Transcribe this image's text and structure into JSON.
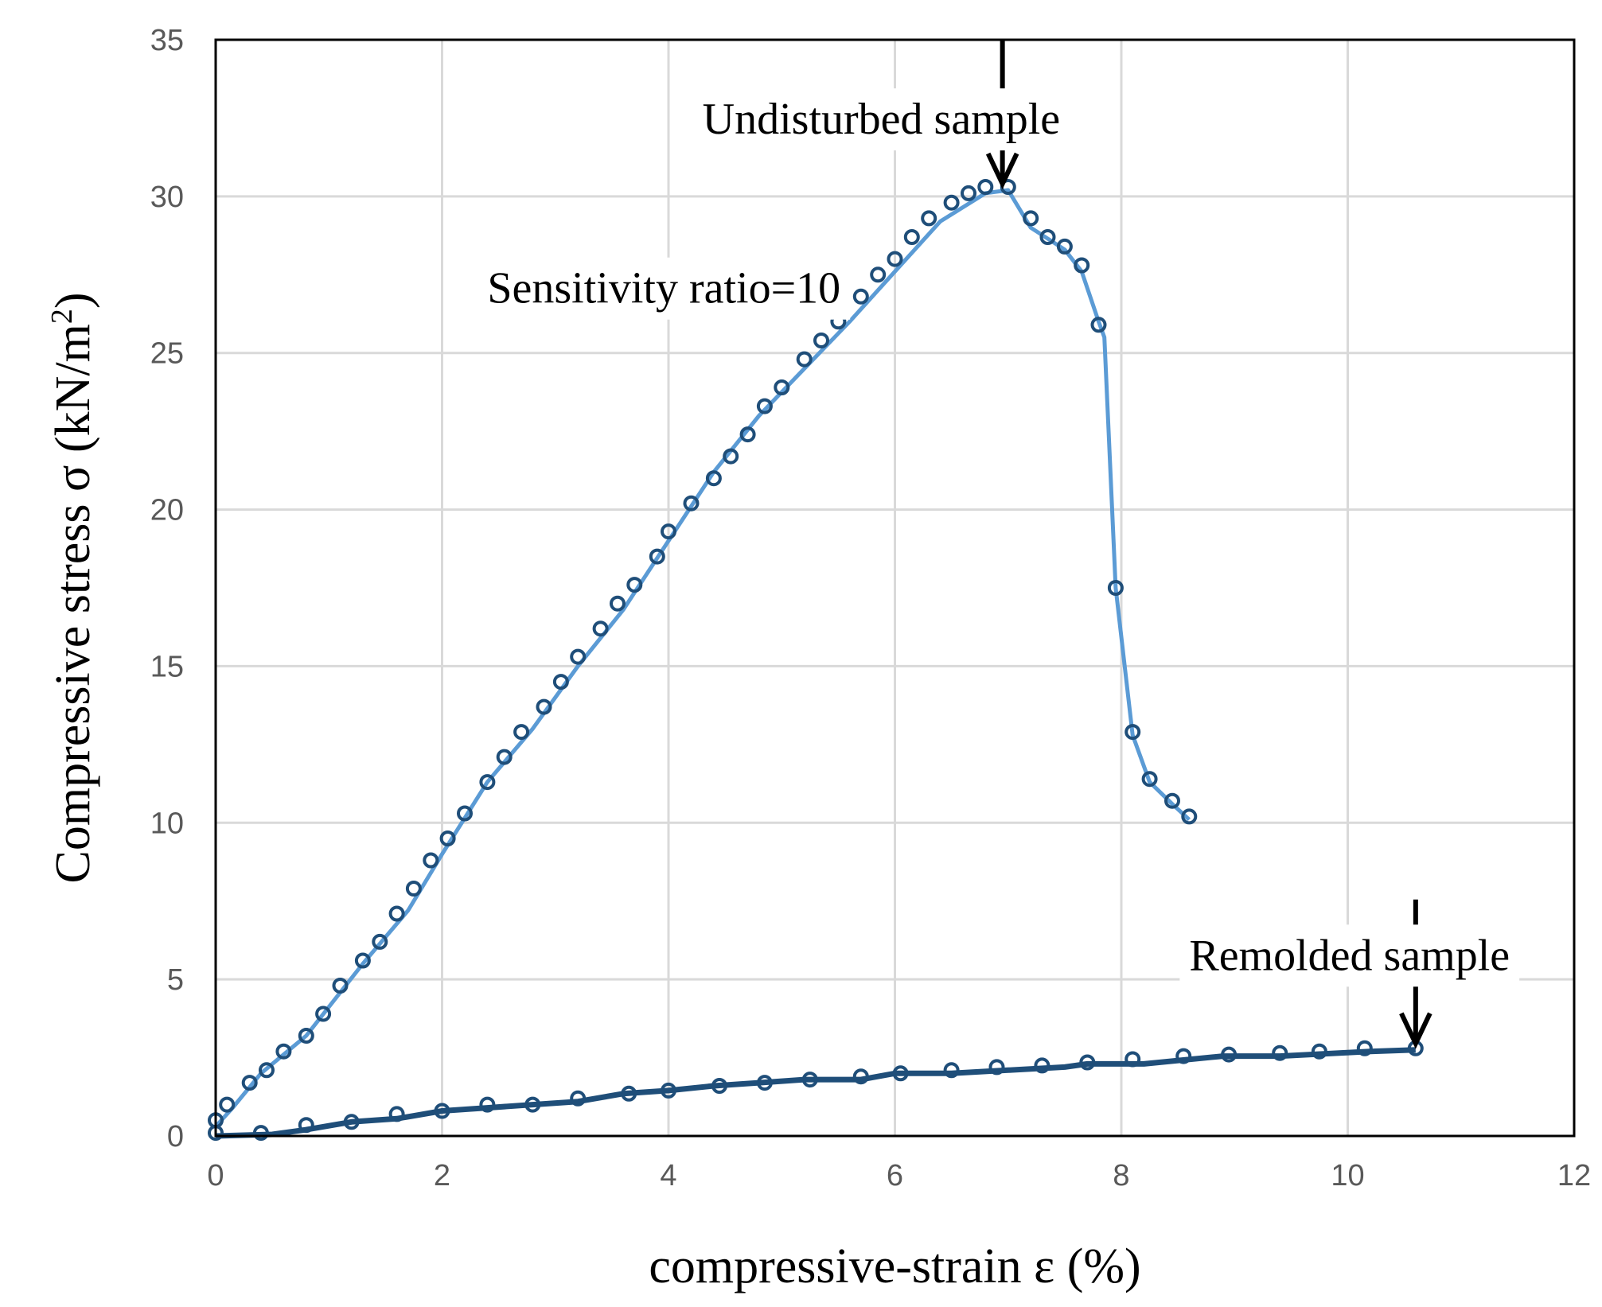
{
  "chart_data": {
    "type": "line",
    "xlabel": "compressive-strain ε (%)",
    "ylabel": "Compressive stress σ (kN/m",
    "ylabel_sup": "2",
    "ylabel_close": ")",
    "xlim": [
      0,
      12
    ],
    "ylim": [
      0,
      35
    ],
    "xticks": [
      0,
      2,
      4,
      6,
      8,
      10,
      12
    ],
    "yticks": [
      0,
      5,
      10,
      15,
      20,
      25,
      30,
      35
    ],
    "grid": true,
    "series": [
      {
        "name": "Undisturbed sample",
        "color": "#5b9bd5",
        "line": [
          [
            0,
            0.3
          ],
          [
            0.15,
            0.9
          ],
          [
            0.4,
            2.0
          ],
          [
            0.8,
            3.2
          ],
          [
            1.3,
            5.5
          ],
          [
            1.7,
            7.2
          ],
          [
            2.0,
            9.0
          ],
          [
            2.4,
            11.3
          ],
          [
            2.8,
            13.0
          ],
          [
            3.2,
            15.0
          ],
          [
            3.6,
            16.8
          ],
          [
            4.0,
            19.0
          ],
          [
            4.4,
            21.2
          ],
          [
            4.8,
            23.0
          ],
          [
            5.2,
            24.5
          ],
          [
            5.6,
            26.0
          ],
          [
            6.0,
            27.6
          ],
          [
            6.4,
            29.2
          ],
          [
            6.8,
            30.1
          ],
          [
            7.0,
            30.2
          ],
          [
            7.2,
            29.0
          ],
          [
            7.5,
            28.3
          ],
          [
            7.65,
            27.6
          ],
          [
            7.8,
            26.0
          ],
          [
            7.85,
            25.5
          ],
          [
            7.95,
            17.5
          ],
          [
            8.1,
            12.8
          ],
          [
            8.25,
            11.3
          ],
          [
            8.45,
            10.6
          ],
          [
            8.6,
            10.1
          ]
        ],
        "markers": [
          [
            0,
            0.5
          ],
          [
            0.1,
            1.0
          ],
          [
            0.3,
            1.7
          ],
          [
            0.45,
            2.1
          ],
          [
            0.6,
            2.7
          ],
          [
            0.8,
            3.2
          ],
          [
            0.95,
            3.9
          ],
          [
            1.1,
            4.8
          ],
          [
            1.3,
            5.6
          ],
          [
            1.45,
            6.2
          ],
          [
            1.6,
            7.1
          ],
          [
            1.75,
            7.9
          ],
          [
            1.9,
            8.8
          ],
          [
            2.05,
            9.5
          ],
          [
            2.2,
            10.3
          ],
          [
            2.4,
            11.3
          ],
          [
            2.55,
            12.1
          ],
          [
            2.7,
            12.9
          ],
          [
            2.9,
            13.7
          ],
          [
            3.05,
            14.5
          ],
          [
            3.2,
            15.3
          ],
          [
            3.4,
            16.2
          ],
          [
            3.55,
            17.0
          ],
          [
            3.7,
            17.6
          ],
          [
            3.9,
            18.5
          ],
          [
            4.0,
            19.3
          ],
          [
            4.2,
            20.2
          ],
          [
            4.4,
            21.0
          ],
          [
            4.55,
            21.7
          ],
          [
            4.7,
            22.4
          ],
          [
            4.85,
            23.3
          ],
          [
            5.0,
            23.9
          ],
          [
            5.2,
            24.8
          ],
          [
            5.35,
            25.4
          ],
          [
            5.5,
            26.0
          ],
          [
            5.7,
            26.8
          ],
          [
            5.85,
            27.5
          ],
          [
            6.0,
            28.0
          ],
          [
            6.15,
            28.7
          ],
          [
            6.3,
            29.3
          ],
          [
            6.5,
            29.8
          ],
          [
            6.65,
            30.1
          ],
          [
            6.8,
            30.3
          ],
          [
            7.0,
            30.3
          ],
          [
            7.2,
            29.3
          ],
          [
            7.35,
            28.7
          ],
          [
            7.5,
            28.4
          ],
          [
            7.65,
            27.8
          ],
          [
            7.8,
            25.9
          ],
          [
            7.95,
            17.5
          ],
          [
            8.1,
            12.9
          ],
          [
            8.25,
            11.4
          ],
          [
            8.45,
            10.7
          ],
          [
            8.6,
            10.2
          ]
        ]
      },
      {
        "name": "Remolded sample",
        "color": "#1f4e79",
        "line": [
          [
            0,
            0
          ],
          [
            0.5,
            0.05
          ],
          [
            0.8,
            0.2
          ],
          [
            1.2,
            0.45
          ],
          [
            1.6,
            0.55
          ],
          [
            2.0,
            0.8
          ],
          [
            2.4,
            0.9
          ],
          [
            2.8,
            1.0
          ],
          [
            3.2,
            1.1
          ],
          [
            3.6,
            1.35
          ],
          [
            4.0,
            1.45
          ],
          [
            4.4,
            1.6
          ],
          [
            4.8,
            1.7
          ],
          [
            5.2,
            1.8
          ],
          [
            5.7,
            1.8
          ],
          [
            6.0,
            2.0
          ],
          [
            6.5,
            2.0
          ],
          [
            7.0,
            2.1
          ],
          [
            7.5,
            2.2
          ],
          [
            7.7,
            2.3
          ],
          [
            8.2,
            2.3
          ],
          [
            8.9,
            2.55
          ],
          [
            9.4,
            2.55
          ],
          [
            10.2,
            2.7
          ],
          [
            10.6,
            2.75
          ]
        ],
        "markers": [
          [
            0,
            0.1
          ],
          [
            0.4,
            0.1
          ],
          [
            0.8,
            0.35
          ],
          [
            1.2,
            0.45
          ],
          [
            1.6,
            0.7
          ],
          [
            2.0,
            0.8
          ],
          [
            2.4,
            1.0
          ],
          [
            2.8,
            1.0
          ],
          [
            3.2,
            1.2
          ],
          [
            3.65,
            1.35
          ],
          [
            4.0,
            1.45
          ],
          [
            4.45,
            1.6
          ],
          [
            4.85,
            1.7
          ],
          [
            5.25,
            1.8
          ],
          [
            5.7,
            1.9
          ],
          [
            6.05,
            2.0
          ],
          [
            6.5,
            2.1
          ],
          [
            6.9,
            2.2
          ],
          [
            7.3,
            2.25
          ],
          [
            7.7,
            2.35
          ],
          [
            8.1,
            2.45
          ],
          [
            8.55,
            2.55
          ],
          [
            8.95,
            2.6
          ],
          [
            9.4,
            2.65
          ],
          [
            9.75,
            2.7
          ],
          [
            10.15,
            2.8
          ],
          [
            10.6,
            2.8
          ]
        ]
      }
    ],
    "annotations": [
      {
        "text": "Undisturbed sample",
        "x": 4.3,
        "y": 32.0,
        "arrow_at": [
          6.95,
          30.3
        ]
      },
      {
        "text": "Sensitivity ratio=10",
        "x": 2.4,
        "y": 26.6
      },
      {
        "text": "Remolded sample",
        "x": 8.6,
        "y": 5.3,
        "arrow_at": [
          10.6,
          2.85
        ]
      }
    ]
  }
}
